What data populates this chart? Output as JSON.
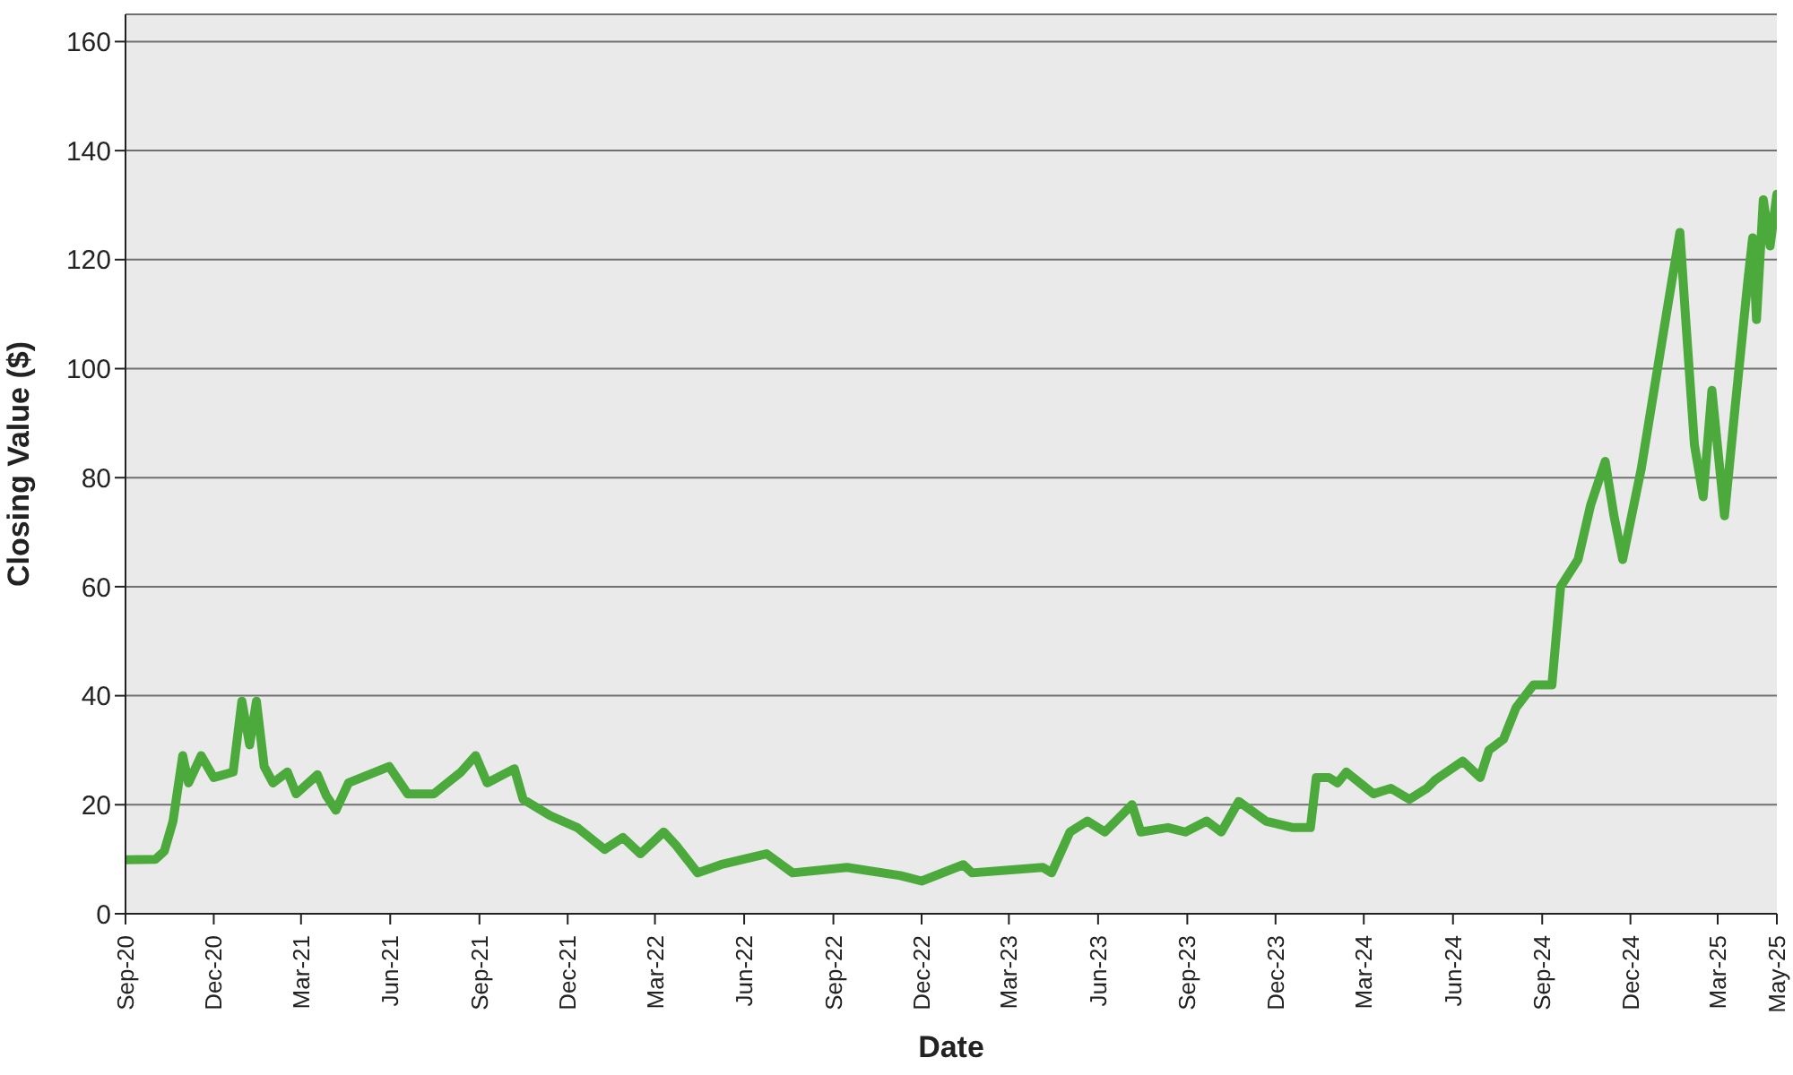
{
  "chart_data": {
    "type": "line",
    "xlabel": "Date",
    "ylabel": "Closing Value ($)",
    "grid": "y",
    "legend": false,
    "marker": "none",
    "line_style": "solid",
    "x": [
      "2020-09-01",
      "2020-10-02",
      "2020-10-11",
      "2020-10-20",
      "2020-10-30",
      "2020-11-05",
      "2020-11-18",
      "2020-12-01",
      "2020-12-21",
      "2020-12-30",
      "2021-01-07",
      "2021-01-14",
      "2021-01-22",
      "2021-01-31",
      "2021-02-15",
      "2021-02-24",
      "2021-03-18",
      "2021-03-27",
      "2021-04-06",
      "2021-04-19",
      "2021-05-31",
      "2021-06-19",
      "2021-07-16",
      "2021-08-13",
      "2021-08-28",
      "2021-09-09",
      "2021-10-07",
      "2021-10-16",
      "2021-11-13",
      "2021-12-11",
      "2022-01-08",
      "2022-01-27",
      "2022-02-14",
      "2022-03-10",
      "2022-03-23",
      "2022-04-14",
      "2022-05-08",
      "2022-06-24",
      "2022-07-21",
      "2022-09-15",
      "2022-11-09",
      "2022-12-01",
      "2023-01-13",
      "2023-01-22",
      "2023-04-05",
      "2023-04-14",
      "2023-05-03",
      "2023-05-21",
      "2023-06-08",
      "2023-07-06",
      "2023-07-15",
      "2023-08-12",
      "2023-08-30",
      "2023-09-21",
      "2023-10-06",
      "2023-10-24",
      "2023-11-21",
      "2023-12-19",
      "2024-01-06",
      "2024-01-12",
      "2024-01-25",
      "2024-02-03",
      "2024-02-12",
      "2024-03-11",
      "2024-03-29",
      "2024-04-17",
      "2024-05-05",
      "2024-05-14",
      "2024-06-11",
      "2024-06-29",
      "2024-07-08",
      "2024-07-23",
      "2024-08-05",
      "2024-08-23",
      "2024-09-11",
      "2024-09-20",
      "2024-10-08",
      "2024-10-21",
      "2024-11-05",
      "2024-11-14",
      "2024-11-23",
      "2024-12-12",
      "2025-01-08",
      "2025-01-21",
      "2025-01-27",
      "2025-02-05",
      "2025-02-14",
      "2025-02-23",
      "2025-03-08",
      "2025-03-19",
      "2025-04-01",
      "2025-04-06",
      "2025-04-10",
      "2025-04-17",
      "2025-04-24",
      "2025-05-01"
    ],
    "series": [
      {
        "color": "#4caa3c",
        "values": [
          9.9,
          10,
          11.5,
          17,
          29,
          24,
          29,
          25,
          26,
          39,
          31,
          39,
          27,
          24,
          26,
          22,
          25.5,
          21.7,
          19,
          24,
          27,
          22,
          22,
          26,
          29,
          24,
          26.6,
          21,
          18,
          15.8,
          11.8,
          14,
          11,
          15,
          12.5,
          7.5,
          9,
          11,
          7.5,
          8.5,
          7,
          6,
          9,
          7.5,
          8.5,
          7.5,
          15,
          17,
          15,
          20,
          15,
          15.8,
          15,
          17,
          15,
          20.6,
          17,
          15.8,
          15.8,
          25,
          25,
          24,
          26,
          22,
          23,
          21,
          23,
          24.6,
          28,
          25,
          30,
          32,
          37.8,
          42,
          42,
          60,
          65,
          75,
          83,
          73,
          65,
          81.5,
          111,
          125,
          109,
          86,
          76.5,
          96,
          73,
          93,
          116,
          124,
          109,
          131,
          122.5,
          132
        ]
      }
    ],
    "xlim": [
      "2020-09",
      "2025-05"
    ],
    "xticks": [
      {
        "value": "2020-09",
        "label": "Sep-20"
      },
      {
        "value": "2020-12",
        "label": "Dec-20"
      },
      {
        "value": "2021-03",
        "label": "Mar-21"
      },
      {
        "value": "2021-06",
        "label": "Jun-21"
      },
      {
        "value": "2021-09",
        "label": "Sep-21"
      },
      {
        "value": "2021-12",
        "label": "Dec-21"
      },
      {
        "value": "2022-03",
        "label": "Mar-22"
      },
      {
        "value": "2022-06",
        "label": "Jun-22"
      },
      {
        "value": "2022-09",
        "label": "Sep-22"
      },
      {
        "value": "2022-12",
        "label": "Dec-22"
      },
      {
        "value": "2023-03",
        "label": "Mar-23"
      },
      {
        "value": "2023-06",
        "label": "Jun-23"
      },
      {
        "value": "2023-09",
        "label": "Sep-23"
      },
      {
        "value": "2023-12",
        "label": "Dec-23"
      },
      {
        "value": "2024-03",
        "label": "Mar-24"
      },
      {
        "value": "2024-06",
        "label": "Jun-24"
      },
      {
        "value": "2024-09",
        "label": "Sep-24"
      },
      {
        "value": "2024-12",
        "label": "Dec-24"
      },
      {
        "value": "2025-03",
        "label": "Mar-25"
      },
      {
        "value": "2025-05",
        "label": "May-25"
      }
    ],
    "ylim": [
      0,
      165
    ],
    "yticks": [
      0,
      20,
      40,
      60,
      80,
      100,
      120,
      140,
      160
    ]
  }
}
